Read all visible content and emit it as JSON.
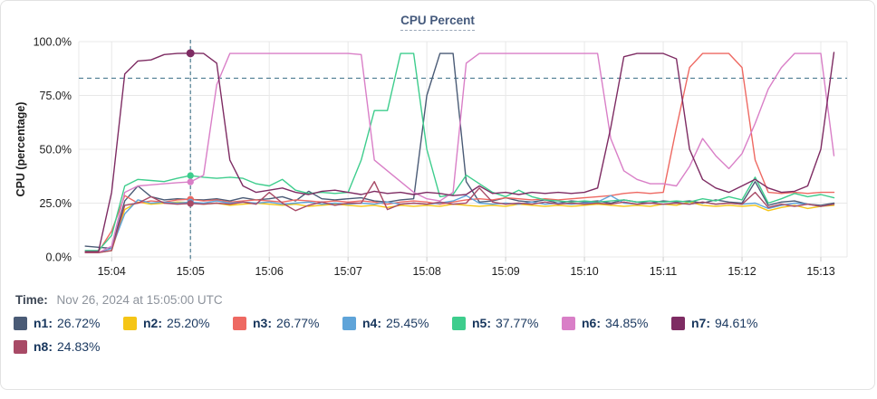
{
  "title": "CPU Percent",
  "time_row": {
    "label": "Time:",
    "value": "Nov 26, 2024 at 15:05:00 UTC"
  },
  "colors": {
    "grid": "#e8e8e8",
    "tick_stub": "#cccccc",
    "axis_text": "#1c1c1c",
    "threshold_line": "#4e7d92",
    "crosshair_line": "#4e7d92",
    "title_text": "#44597c"
  },
  "chart_data": {
    "type": "line",
    "title": "CPU Percent",
    "xlabel": "",
    "ylabel": "CPU (percentage)",
    "ylim": [
      0,
      100
    ],
    "grid": true,
    "legend_position": "bottom",
    "yticks": [
      {
        "value": 0,
        "label": "0.0%"
      },
      {
        "value": 25,
        "label": "25.0%"
      },
      {
        "value": 50,
        "label": "50.0%"
      },
      {
        "value": 75,
        "label": "75.0%"
      },
      {
        "value": 100,
        "label": "100.0%"
      }
    ],
    "xticks": [
      {
        "sec": 240,
        "label": "15:04"
      },
      {
        "sec": 300,
        "label": "15:05"
      },
      {
        "sec": 360,
        "label": "15:06"
      },
      {
        "sec": 420,
        "label": "15:07"
      },
      {
        "sec": 480,
        "label": "15:08"
      },
      {
        "sec": 540,
        "label": "15:09"
      },
      {
        "sec": 600,
        "label": "15:10"
      },
      {
        "sec": 660,
        "label": "15:11"
      },
      {
        "sec": 720,
        "label": "15:12"
      },
      {
        "sec": 780,
        "label": "15:13"
      }
    ],
    "x_domain_sec": [
      215,
      800
    ],
    "x_start_sec": 220,
    "x_step_sec": 10,
    "x_start_time": "15:03:40",
    "threshold_percent": 83,
    "crosshair_sec": 300,
    "crosshair_time": "15:05:00",
    "series": [
      {
        "name": "n1",
        "color": "#4a5b76",
        "value_at_crosshair": 26.72,
        "values": [
          5,
          4.5,
          4,
          26,
          33,
          28,
          26.5,
          27,
          26.72,
          26.5,
          27,
          26,
          27.5,
          26.5,
          27,
          28,
          26,
          30.5,
          27,
          26.5,
          27,
          27.5,
          26,
          25.5,
          26.5,
          27,
          75,
          94.5,
          94.5,
          35,
          25.5,
          26,
          27.5,
          26,
          25.5,
          26.5,
          25,
          26,
          25.5,
          26,
          25,
          26.5,
          25.5,
          25,
          26,
          25.5,
          26,
          25,
          26.5,
          25.5,
          25,
          35,
          24,
          25.5,
          26,
          24.5,
          24,
          25
        ]
      },
      {
        "name": "n2",
        "color": "#f5c516",
        "value_at_crosshair": 25.2,
        "values": [
          2,
          2,
          3,
          22,
          25.5,
          24.5,
          25,
          25.5,
          25.2,
          24.5,
          25,
          24,
          24.5,
          25,
          24.5,
          24,
          24.5,
          23.5,
          24,
          24.5,
          24,
          23.5,
          24,
          23,
          24,
          23.5,
          24,
          23.5,
          24.5,
          24,
          23.5,
          24,
          23.5,
          24.5,
          24,
          23.5,
          24,
          23.5,
          24,
          24.5,
          24,
          23.5,
          24,
          23.5,
          24.5,
          24,
          25.5,
          24,
          23.5,
          24,
          23.5,
          24,
          21.5,
          23,
          24,
          22.5,
          23.5,
          24
        ]
      },
      {
        "name": "n3",
        "color": "#ee6962",
        "value_at_crosshair": 26.77,
        "values": [
          2.5,
          2.5,
          12,
          28.5,
          25,
          26,
          25.5,
          26.5,
          26.77,
          26,
          26.5,
          25.5,
          26,
          26.5,
          26,
          25.5,
          26.5,
          26,
          25.5,
          26,
          25.5,
          26,
          25.5,
          24.5,
          25.5,
          26,
          25.5,
          24.5,
          25.5,
          26.5,
          27,
          26.5,
          27.5,
          27,
          26.5,
          27,
          26.5,
          27,
          27.5,
          28,
          28.5,
          29.5,
          30,
          29.5,
          30,
          60,
          88,
          94.5,
          94.5,
          94.5,
          88,
          45,
          30,
          29.5,
          30,
          29.5,
          30,
          30
        ]
      },
      {
        "name": "n4",
        "color": "#5fa4d9",
        "value_at_crosshair": 25.45,
        "values": [
          2,
          2,
          4,
          20,
          26.5,
          25,
          25.5,
          25,
          25.45,
          25,
          26,
          25,
          25.5,
          25,
          25.5,
          24.5,
          25,
          25.5,
          24.5,
          25,
          24.5,
          25,
          24.5,
          25.5,
          24.5,
          25,
          24.5,
          25,
          26,
          28.5,
          25,
          24.5,
          25,
          24.5,
          25.5,
          24.5,
          25,
          24.5,
          25,
          25.5,
          28.5,
          25,
          24.5,
          25,
          24.5,
          25,
          24.5,
          25.5,
          24.5,
          25,
          24.5,
          25,
          22.5,
          24,
          25,
          24.5,
          23.5,
          24.5
        ]
      },
      {
        "name": "n5",
        "color": "#3ecd8d",
        "value_at_crosshair": 37.77,
        "values": [
          3,
          3,
          10,
          33,
          36,
          35.5,
          35,
          36.5,
          37.77,
          37,
          36.5,
          37,
          36.5,
          34,
          33,
          36,
          31,
          29.5,
          30,
          29.5,
          30,
          45,
          68,
          68,
          94.5,
          94.5,
          50,
          28,
          29,
          38,
          34,
          30,
          28,
          31,
          28,
          26.5,
          26,
          25.5,
          26,
          25.5,
          26,
          26.5,
          25.5,
          26,
          25.5,
          26,
          25.5,
          27,
          26,
          28,
          26.5,
          37,
          25,
          27,
          29.5,
          28,
          29,
          27.5
        ]
      },
      {
        "name": "n6",
        "color": "#d97fc7",
        "value_at_crosshair": 34.85,
        "values": [
          2,
          2,
          5,
          30,
          33,
          33.5,
          34,
          34.5,
          34.85,
          38,
          80,
          94.5,
          94.5,
          94.5,
          94.5,
          94.5,
          94.5,
          94.5,
          94.5,
          94.5,
          94.5,
          94,
          45,
          40,
          35,
          30,
          27,
          26,
          30,
          90,
          94.5,
          94.5,
          94.5,
          94.5,
          94.5,
          94.5,
          94.5,
          94.5,
          94.5,
          94.5,
          55,
          40,
          36,
          34,
          34,
          33,
          42,
          55,
          47,
          41,
          48,
          62,
          78,
          88,
          94.5,
          94.5,
          94.5,
          47
        ]
      },
      {
        "name": "n7",
        "color": "#7e2c63",
        "value_at_crosshair": 94.61,
        "values": [
          2.5,
          2.5,
          30,
          85,
          91,
          91.5,
          94,
          94.5,
          94.61,
          94.5,
          90,
          45,
          33,
          30,
          31,
          32,
          30,
          29,
          30.5,
          31,
          30,
          29,
          30.5,
          29.5,
          30,
          29,
          30,
          29.5,
          28.5,
          29,
          33,
          29.5,
          30,
          29,
          30,
          29.5,
          30,
          29.5,
          30,
          32,
          60,
          93,
          94.5,
          94.5,
          94.5,
          92,
          50,
          36,
          32,
          30,
          33,
          36,
          32,
          30,
          30.5,
          33,
          50,
          95
        ]
      },
      {
        "name": "n8",
        "color": "#a84a66",
        "value_at_crosshair": 24.83,
        "values": [
          2,
          2,
          3,
          24,
          25,
          28,
          25,
          24.5,
          24.83,
          24.5,
          25,
          24.5,
          25.5,
          24.5,
          30,
          25,
          21.5,
          24,
          25.5,
          24,
          25,
          25,
          35,
          22,
          24.5,
          25,
          24.5,
          25.5,
          24.5,
          25,
          32,
          25.5,
          24.5,
          25,
          24.5,
          25.5,
          24.5,
          25,
          24.5,
          25,
          24.5,
          25.5,
          24.5,
          25,
          24.5,
          25,
          24.5,
          25.5,
          24.5,
          25,
          24.5,
          30,
          23,
          24.5,
          23.5,
          24.5,
          23.5,
          24.5
        ]
      }
    ]
  },
  "legend": {
    "items": [
      {
        "label": "n1:",
        "value": "26.72%",
        "color": "#4a5b76"
      },
      {
        "label": "n2:",
        "value": "25.20%",
        "color": "#f5c516"
      },
      {
        "label": "n3:",
        "value": "26.77%",
        "color": "#ee6962"
      },
      {
        "label": "n4:",
        "value": "25.45%",
        "color": "#5fa4d9"
      },
      {
        "label": "n5:",
        "value": "37.77%",
        "color": "#3ecd8d"
      },
      {
        "label": "n6:",
        "value": "34.85%",
        "color": "#d97fc7"
      },
      {
        "label": "n7:",
        "value": "94.61%",
        "color": "#7e2c63"
      },
      {
        "label": "n8:",
        "value": "24.83%",
        "color": "#a84a66"
      }
    ]
  }
}
